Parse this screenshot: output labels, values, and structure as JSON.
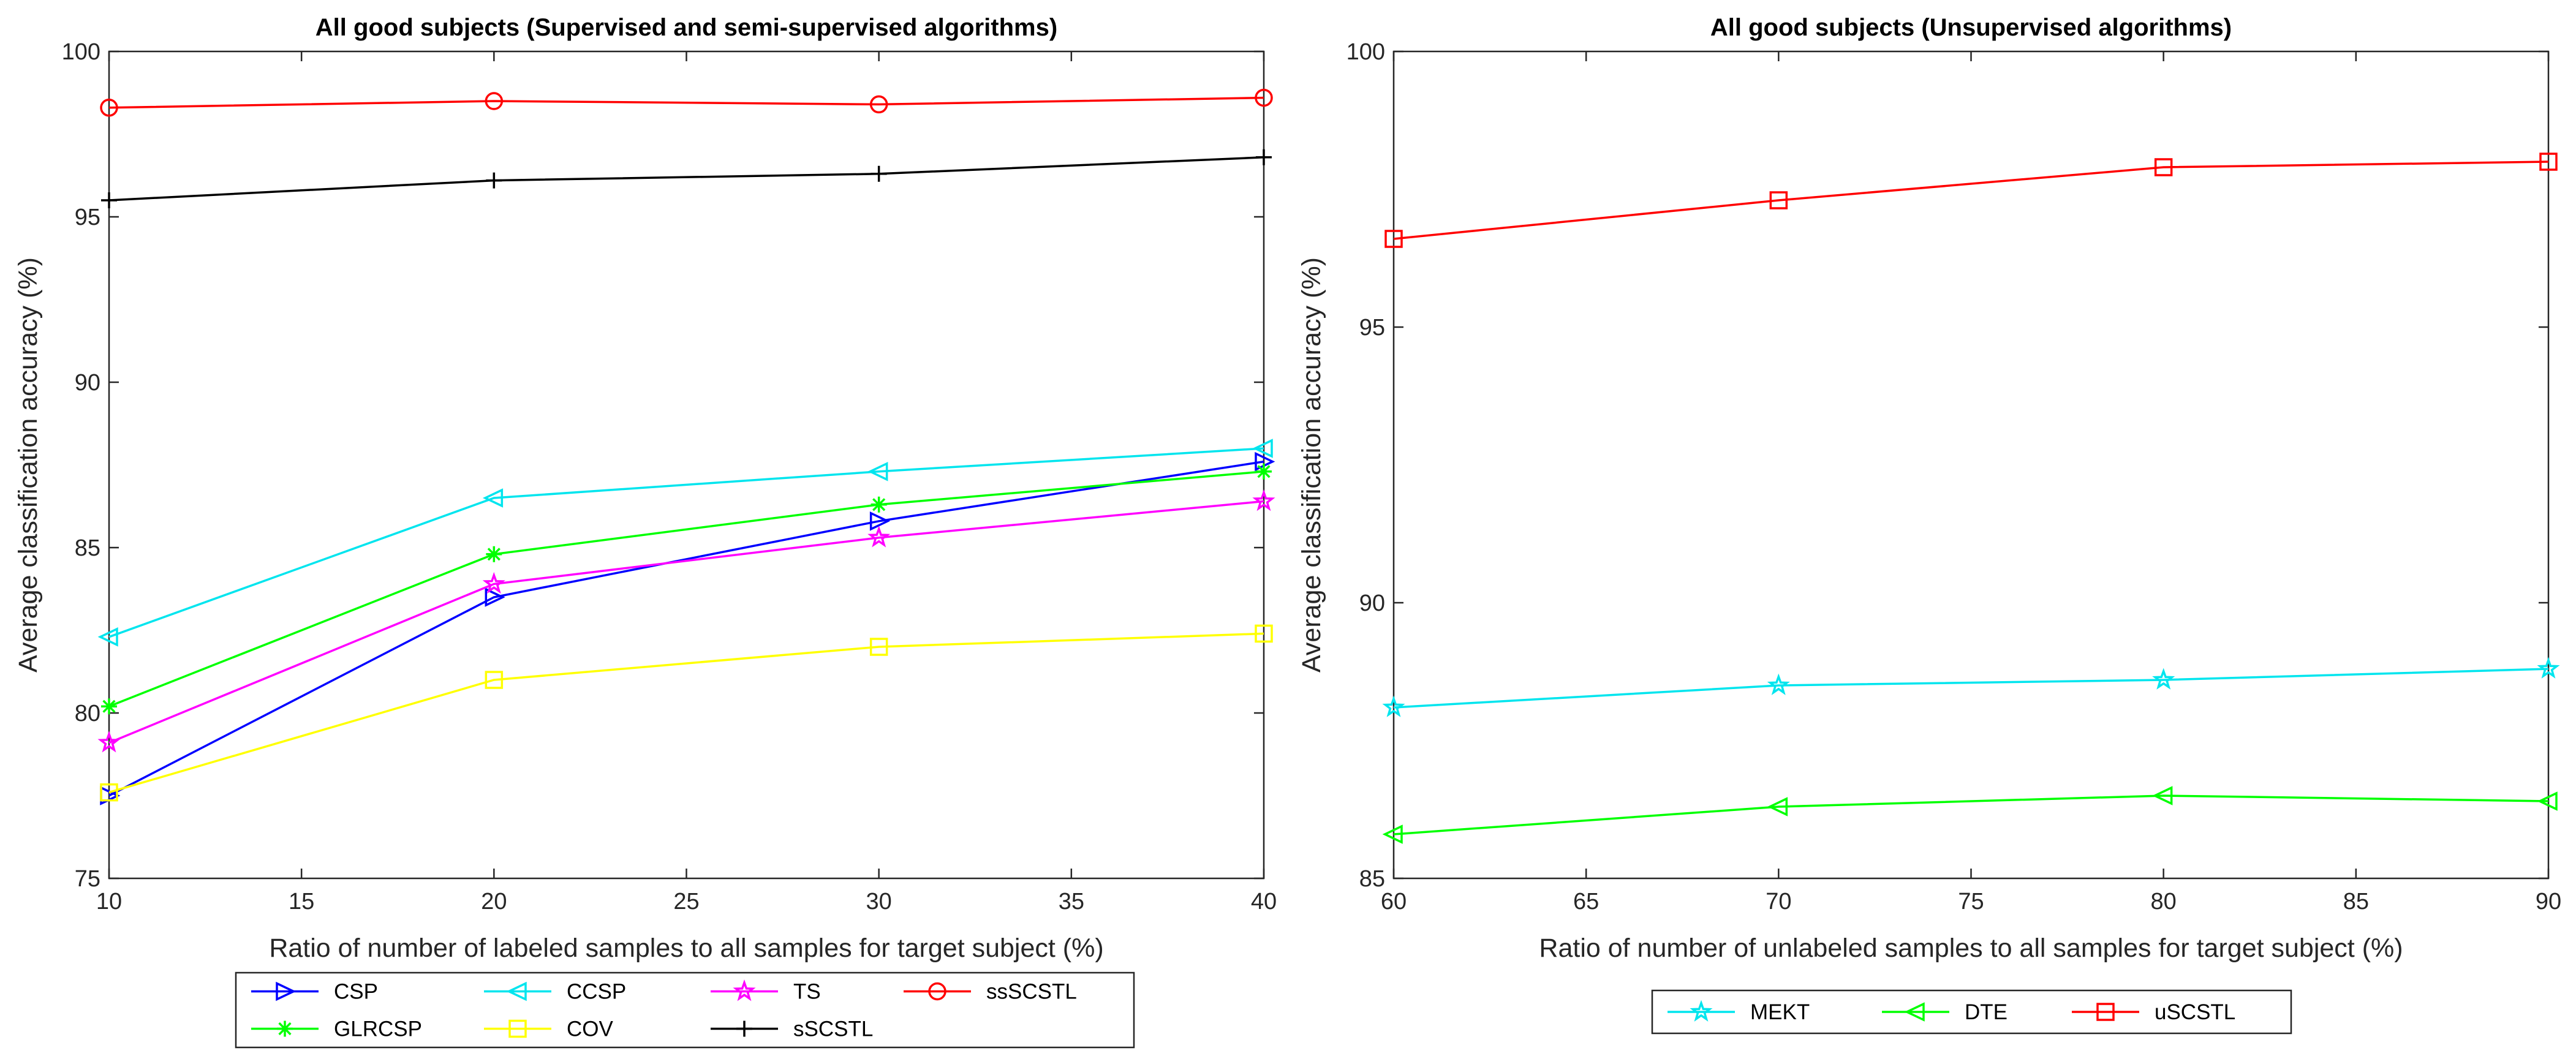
{
  "chart_data": [
    {
      "type": "line",
      "title": "All good subjects (Supervised and semi-supervised algorithms)",
      "xlabel": "Ratio of number of labeled samples to all samples for target subject (%)",
      "ylabel": "Average classification accuracy (%)",
      "x": [
        10,
        20,
        30,
        40
      ],
      "xlim": [
        10,
        40
      ],
      "ylim": [
        75,
        100
      ],
      "xticks": [
        "10",
        "15",
        "20",
        "25",
        "30",
        "35",
        "40"
      ],
      "yticks": [
        "75",
        "80",
        "85",
        "90",
        "95",
        "100"
      ],
      "grid": false,
      "legend_position": "bottom",
      "series": [
        {
          "name": "CSP",
          "color": "#0000ff",
          "marker": "triangle-right",
          "values": [
            77.5,
            83.5,
            85.8,
            87.6
          ]
        },
        {
          "name": "CCSP",
          "color": "#00e5ee",
          "marker": "triangle-left",
          "values": [
            82.3,
            86.5,
            87.3,
            88.0
          ]
        },
        {
          "name": "TS",
          "color": "#ff00ff",
          "marker": "pentagram",
          "values": [
            79.1,
            83.9,
            85.3,
            86.4
          ]
        },
        {
          "name": "ssSCSTL",
          "color": "#ff0000",
          "marker": "circle",
          "values": [
            98.3,
            98.5,
            98.4,
            98.6
          ]
        },
        {
          "name": "GLRCSP",
          "color": "#00ff00",
          "marker": "asterisk",
          "values": [
            80.2,
            84.8,
            86.3,
            87.3
          ]
        },
        {
          "name": "COV",
          "color": "#ffff00",
          "marker": "square",
          "values": [
            77.6,
            81.0,
            82.0,
            82.4
          ]
        },
        {
          "name": "sSCSTL",
          "color": "#000000",
          "marker": "plus",
          "values": [
            95.5,
            96.1,
            96.3,
            96.8
          ]
        }
      ]
    },
    {
      "type": "line",
      "title": "All good subjects (Unsupervised algorithms)",
      "xlabel": "Ratio of number of unlabeled samples to all samples for target subject (%)",
      "ylabel": "Average classification accuracy (%)",
      "x": [
        60,
        70,
        80,
        90
      ],
      "xlim": [
        60,
        90
      ],
      "ylim": [
        85,
        100
      ],
      "xticks": [
        "60",
        "65",
        "70",
        "75",
        "80",
        "85",
        "90"
      ],
      "yticks": [
        "85",
        "90",
        "95",
        "100"
      ],
      "grid": false,
      "legend_position": "bottom",
      "series": [
        {
          "name": "MEKT",
          "color": "#00e5ee",
          "marker": "pentagram",
          "values": [
            88.1,
            88.5,
            88.6,
            88.8
          ]
        },
        {
          "name": "DTE",
          "color": "#00ff00",
          "marker": "triangle-left",
          "values": [
            85.8,
            86.3,
            86.5,
            86.4
          ]
        },
        {
          "name": "uSCSTL",
          "color": "#ff0000",
          "marker": "square",
          "values": [
            96.6,
            97.3,
            97.9,
            98.0
          ]
        }
      ]
    }
  ]
}
